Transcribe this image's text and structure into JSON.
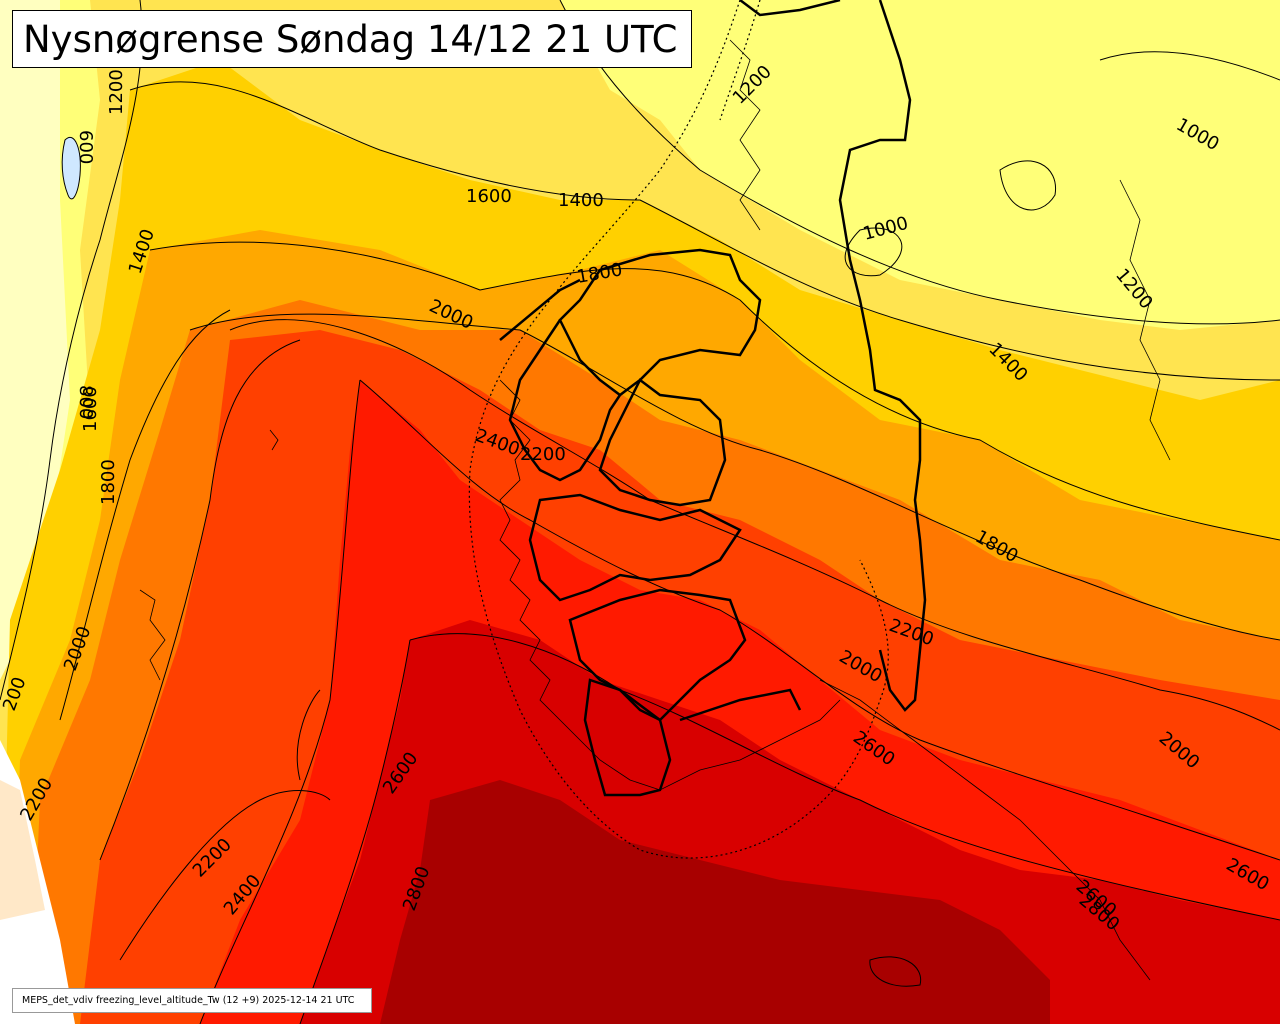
{
  "title": "Nysnøgrense Søndag 14/12 21 UTC",
  "footer": "MEPS_det_vdiv freezing_level_altitude_Tw (12 +9) 2025-12-14 21 UTC",
  "colors": {
    "band_below_800": "#ffffc0",
    "band_800_1200": "#ffff78",
    "band_1200_1600": "#ffe450",
    "band_1600_2000": "#ffd000",
    "band_2000_2200": "#ffa800",
    "band_2200_2400": "#ff7800",
    "band_2400_2600": "#ff4000",
    "band_2600_2800": "#ff1a00",
    "band_2800_3000": "#d80000",
    "band_above_3000": "#a80000",
    "outside_domain": "#ffffff",
    "domain_edge_fill": "#ffe8c8"
  },
  "contour_labels": [
    {
      "text": "1200"
    },
    {
      "text": "600"
    },
    {
      "text": "1400"
    },
    {
      "text": "1600"
    },
    {
      "text": "1400"
    },
    {
      "text": "1200"
    },
    {
      "text": "1000"
    },
    {
      "text": "1000"
    },
    {
      "text": "1200"
    },
    {
      "text": "1800"
    },
    {
      "text": "2000"
    },
    {
      "text": "1400"
    },
    {
      "text": "800"
    },
    {
      "text": "1600"
    },
    {
      "text": "2400"
    },
    {
      "text": "2200"
    },
    {
      "text": "1800"
    },
    {
      "text": "1800"
    },
    {
      "text": "2000"
    },
    {
      "text": "2200"
    },
    {
      "text": "2000"
    },
    {
      "text": "2600"
    },
    {
      "text": "2000"
    },
    {
      "text": "2600"
    },
    {
      "text": "2200"
    },
    {
      "text": "2400"
    },
    {
      "text": "2800"
    },
    {
      "text": "2600"
    },
    {
      "text": "2600"
    },
    {
      "text": "2800"
    },
    {
      "text": "2200"
    },
    {
      "text": "200"
    }
  ]
}
